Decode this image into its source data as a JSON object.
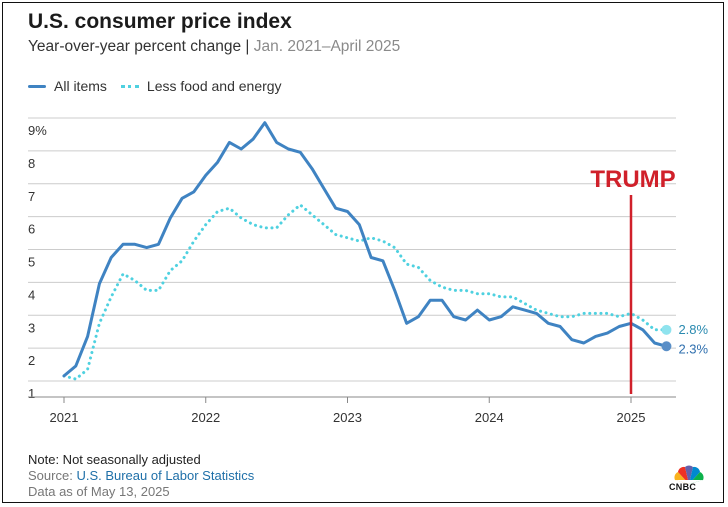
{
  "title": "U.S. consumer price index",
  "subtitle": "Year-over-year percent change |",
  "date_range": "Jan. 2021–April 2025",
  "legend": {
    "all_items": "All items",
    "core": "Less food and energy"
  },
  "colors": {
    "all_items": "#3f83c2",
    "core": "#4fd1e0",
    "annotation": "#d0202a",
    "grid": "#cccccc"
  },
  "chart_data": {
    "type": "line",
    "title": "U.S. consumer price index",
    "subtitle": "Year-over-year percent change | Jan. 2021–April 2025",
    "xlabel": "",
    "ylabel": "",
    "ylim": [
      1,
      9
    ],
    "xlim": [
      2021.0,
      2025.35
    ],
    "y_ticks": [
      "1",
      "2",
      "3",
      "4",
      "5",
      "6",
      "7",
      "8",
      "9%"
    ],
    "x_ticks": [
      "2021",
      "2022",
      "2023",
      "2024",
      "2025"
    ],
    "series": [
      {
        "name": "All items",
        "style": "solid",
        "values": [
          1.4,
          1.7,
          2.6,
          4.2,
          5.0,
          5.4,
          5.4,
          5.3,
          5.4,
          6.2,
          6.8,
          7.0,
          7.5,
          7.9,
          8.5,
          8.3,
          8.6,
          9.1,
          8.5,
          8.3,
          8.2,
          7.7,
          7.1,
          6.5,
          6.4,
          6.0,
          5.0,
          4.9,
          4.0,
          3.0,
          3.2,
          3.7,
          3.7,
          3.2,
          3.1,
          3.4,
          3.1,
          3.2,
          3.5,
          3.4,
          3.3,
          3.0,
          2.9,
          2.5,
          2.4,
          2.6,
          2.7,
          2.9,
          3.0,
          2.8,
          2.4,
          2.3
        ]
      },
      {
        "name": "Less food and energy",
        "style": "dotted",
        "values": [
          1.4,
          1.3,
          1.6,
          3.0,
          3.8,
          4.5,
          4.3,
          4.0,
          4.0,
          4.6,
          4.9,
          5.5,
          6.0,
          6.4,
          6.5,
          6.2,
          6.0,
          5.9,
          5.9,
          6.3,
          6.6,
          6.3,
          6.0,
          5.7,
          5.6,
          5.5,
          5.6,
          5.5,
          5.3,
          4.8,
          4.7,
          4.3,
          4.1,
          4.0,
          4.0,
          3.9,
          3.9,
          3.8,
          3.8,
          3.6,
          3.4,
          3.3,
          3.2,
          3.2,
          3.3,
          3.3,
          3.3,
          3.2,
          3.3,
          3.1,
          2.8,
          2.8
        ]
      }
    ],
    "end_labels": [
      "2.8%",
      "2.3%"
    ],
    "annotation": {
      "text": "TRUMP",
      "x": 2025.0
    }
  },
  "notes": {
    "line1": "Note: Not seasonally adjusted",
    "source_prefix": "Source:",
    "source_link": "U.S. Bureau of Labor Statistics",
    "data_as_of": "Data as of May 13, 2025"
  },
  "logo": {
    "text": "CNBC"
  }
}
